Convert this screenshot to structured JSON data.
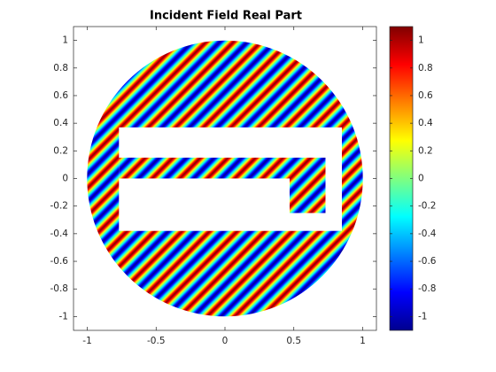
{
  "chart_data": {
    "type": "image",
    "title": "Incident Field Real Part",
    "xlim": [
      -1.1,
      1.1
    ],
    "ylim": [
      -1.1,
      1.1
    ],
    "xticks": [
      -1,
      -0.5,
      0,
      0.5,
      1
    ],
    "yticks": [
      -1,
      -0.8,
      -0.6,
      -0.4,
      -0.2,
      0,
      0.2,
      0.4,
      0.6,
      0.8,
      1
    ],
    "colormap": "jet",
    "box": true,
    "colorbar": {
      "clim": [
        -1.1,
        1.1
      ],
      "ticks": [
        -1,
        -0.8,
        -0.6,
        -0.4,
        -0.2,
        0,
        0.2,
        0.4,
        0.6,
        0.8,
        1
      ]
    }
  }
}
